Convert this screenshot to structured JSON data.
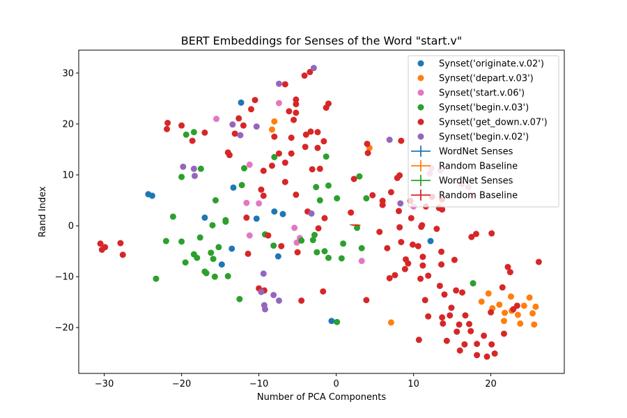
{
  "chart_data": {
    "type": "scatter",
    "title": "BERT Embeddings for Senses of the Word \"start.v\"",
    "xlabel": "Number of PCA Components",
    "ylabel": "Rand Index",
    "xlim": [
      -33.3,
      29.5
    ],
    "ylim": [
      -29.0,
      34.5
    ],
    "xticks": [
      -30,
      -20,
      -10,
      0,
      10,
      20
    ],
    "yticks": [
      -20,
      -10,
      0,
      10,
      20,
      30
    ],
    "grid": false,
    "legend_position": "top-right",
    "series": [
      {
        "name": "Synset('originate.v.02')",
        "kind": "scatter",
        "color": "#1f77b4",
        "points": [
          [
            -12.3,
            24.2
          ],
          [
            -24.3,
            6.2
          ],
          [
            -23.8,
            5.9
          ],
          [
            -17.0,
            1.6
          ],
          [
            -13.3,
            7.5
          ],
          [
            -10.3,
            1.4
          ],
          [
            -13.5,
            -4.5
          ],
          [
            -14.8,
            -7.6
          ],
          [
            -8.0,
            2.8
          ],
          [
            -6.9,
            2.3
          ],
          [
            -7.5,
            -6.0
          ],
          [
            -0.6,
            -18.7
          ],
          [
            12.2,
            -3.0
          ]
        ]
      },
      {
        "name": "Synset('depart.v.03')",
        "kind": "scatter",
        "color": "#ff7f0e",
        "points": [
          [
            -8.3,
            18.9
          ],
          [
            -8.0,
            20.5
          ],
          [
            4.3,
            15.3
          ],
          [
            7.1,
            -19.0
          ],
          [
            18.8,
            -14.9
          ],
          [
            19.7,
            -13.3
          ],
          [
            20.2,
            -16.2
          ],
          [
            21.1,
            -15.5
          ],
          [
            21.7,
            -18.7
          ],
          [
            21.8,
            -17.1
          ],
          [
            22.6,
            -13.9
          ],
          [
            22.7,
            -16.7
          ],
          [
            23.5,
            -17.5
          ],
          [
            23.8,
            -19.2
          ],
          [
            24.3,
            -15.7
          ],
          [
            25.0,
            -14.1
          ],
          [
            25.4,
            -17.2
          ],
          [
            25.6,
            -19.4
          ],
          [
            25.8,
            -15.9
          ]
        ]
      },
      {
        "name": "Synset('start.v.06')",
        "kind": "scatter",
        "color": "#e377c2",
        "points": [
          [
            -15.5,
            21.0
          ],
          [
            -11.2,
            12.0
          ],
          [
            -11.6,
            4.5
          ],
          [
            -10.0,
            4.4
          ],
          [
            -11.2,
            -1.9
          ],
          [
            -7.4,
            24.1
          ],
          [
            -5.4,
            -0.4
          ],
          [
            -5.1,
            -3.3
          ],
          [
            -4.7,
            -2.4
          ],
          [
            3.3,
            -6.9
          ],
          [
            10.0,
            3.8
          ],
          [
            12.1,
            10.3
          ],
          [
            12.3,
            11.3
          ],
          [
            13.5,
            10.9
          ],
          [
            16.2,
            8.2
          ],
          [
            17.1,
            7.6
          ],
          [
            17.6,
            6.0
          ]
        ]
      },
      {
        "name": "Synset('begin.v.03')",
        "kind": "scatter",
        "color": "#2ca02c",
        "points": [
          [
            -19.4,
            17.9
          ],
          [
            -18.4,
            18.4
          ],
          [
            -20.0,
            9.6
          ],
          [
            -17.5,
            11.2
          ],
          [
            -21.1,
            1.8
          ],
          [
            -22.0,
            -3.0
          ],
          [
            -20.0,
            -3.1
          ],
          [
            -19.5,
            -7.2
          ],
          [
            -18.4,
            -5.6
          ],
          [
            -18.0,
            -6.3
          ],
          [
            -17.6,
            -2.3
          ],
          [
            -16.8,
            -9.3
          ],
          [
            -17.0,
            -9.0
          ],
          [
            -16.2,
            -5.3
          ],
          [
            -15.9,
            -6.5
          ],
          [
            -16.0,
            0.1
          ],
          [
            -15.6,
            5.0
          ],
          [
            -15.2,
            -4.2
          ],
          [
            -14.3,
            0.8
          ],
          [
            -14.3,
            1.1
          ],
          [
            -14.0,
            -9.9
          ],
          [
            -12.5,
            -14.4
          ],
          [
            -11.9,
            11.3
          ],
          [
            -12.2,
            8.0
          ],
          [
            -9.2,
            -1.7
          ],
          [
            -8.1,
            -3.9
          ],
          [
            -8.0,
            13.5
          ],
          [
            -4.5,
            -2.9
          ],
          [
            -3.0,
            -2.8
          ],
          [
            -2.6,
            7.6
          ],
          [
            -2.5,
            -5.2
          ],
          [
            -2.8,
            -1.8
          ],
          [
            -2.1,
            5.0
          ],
          [
            -1.5,
            -5.0
          ],
          [
            -1.3,
            13.6
          ],
          [
            -1.0,
            7.9
          ],
          [
            0.1,
            5.4
          ],
          [
            2.7,
            -0.4
          ],
          [
            3.0,
            9.7
          ],
          [
            3.3,
            -4.4
          ],
          [
            3.9,
            5.4
          ],
          [
            0.9,
            -3.5
          ],
          [
            -1.0,
            -6.3
          ],
          [
            0.7,
            -6.4
          ],
          [
            0.1,
            -18.9
          ],
          [
            17.7,
            -11.3
          ],
          [
            -15.7,
            -10.0
          ],
          [
            -23.3,
            -10.4
          ]
        ]
      },
      {
        "name": "Synset('get_down.v.07')",
        "kind": "scatter",
        "color": "#d62728",
        "points": [
          [
            -30.5,
            -3.5
          ],
          [
            -30.3,
            -4.7
          ],
          [
            -29.9,
            -4.2
          ],
          [
            -27.9,
            -3.4
          ],
          [
            -27.6,
            -5.7
          ],
          [
            -21.8,
            20.2
          ],
          [
            -21.9,
            19.0
          ],
          [
            -20.0,
            19.7
          ],
          [
            -18.6,
            16.7
          ],
          [
            -17.0,
            18.3
          ],
          [
            -14.0,
            14.4
          ],
          [
            -13.8,
            13.9
          ],
          [
            -13.1,
            18.1
          ],
          [
            -12.6,
            21.1
          ],
          [
            -12.0,
            19.7
          ],
          [
            -11.6,
            1.6
          ],
          [
            -11.4,
            -5.5
          ],
          [
            -11.0,
            22.9
          ],
          [
            -10.5,
            24.7
          ],
          [
            -9.7,
            7.1
          ],
          [
            -9.4,
            10.8
          ],
          [
            -9.4,
            5.9
          ],
          [
            -8.8,
            -1.9
          ],
          [
            -8.3,
            11.8
          ],
          [
            -8.0,
            17.5
          ],
          [
            -7.4,
            14.2
          ],
          [
            -7.1,
            -4.0
          ],
          [
            -6.6,
            27.8
          ],
          [
            -6.6,
            8.6
          ],
          [
            -6.6,
            12.4
          ],
          [
            -6.1,
            22.5
          ],
          [
            -5.8,
            14.2
          ],
          [
            -5.8,
            17.3
          ],
          [
            -5.2,
            22.2
          ],
          [
            -5.5,
            20.8
          ],
          [
            -5.2,
            23.9
          ],
          [
            -5.2,
            24.8
          ],
          [
            -5.2,
            6.1
          ],
          [
            -5.0,
            -5.2
          ],
          [
            -4.5,
            -14.7
          ],
          [
            -4.1,
            29.5
          ],
          [
            -3.4,
            30.2
          ],
          [
            -3.9,
            17.9
          ],
          [
            -4.0,
            15.5
          ],
          [
            -3.7,
            2.8
          ],
          [
            -3.3,
            18.5
          ],
          [
            -3.1,
            11.1
          ],
          [
            -2.4,
            18.4
          ],
          [
            -2.4,
            15.3
          ],
          [
            -2.1,
            11.2
          ],
          [
            -1.6,
            16.6
          ],
          [
            -1.3,
            23.2
          ],
          [
            -1.0,
            24.0
          ],
          [
            -1.5,
            1.5
          ],
          [
            1.9,
            2.6
          ],
          [
            2.3,
            9.2
          ],
          [
            4.0,
            16.1
          ],
          [
            4.1,
            14.3
          ],
          [
            3.9,
            -14.6
          ],
          [
            4.7,
            6.0
          ],
          [
            5.6,
            -1.2
          ],
          [
            6.0,
            4.9
          ],
          [
            6.0,
            4.1
          ],
          [
            6.6,
            -4.4
          ],
          [
            6.9,
            -10.3
          ],
          [
            7.6,
            -9.7
          ],
          [
            7.1,
            6.6
          ],
          [
            7.9,
            9.4
          ],
          [
            8.1,
            2.9
          ],
          [
            8.4,
            16.7
          ],
          [
            8.2,
            -0.3
          ],
          [
            8.4,
            -3.2
          ],
          [
            8.2,
            9.9
          ],
          [
            9.0,
            -6.6
          ],
          [
            9.3,
            -7.4
          ],
          [
            8.9,
            -8.5
          ],
          [
            9.6,
            4.9
          ],
          [
            9.7,
            1.5
          ],
          [
            9.9,
            -3.7
          ],
          [
            10.6,
            -4.0
          ],
          [
            10.7,
            -22.4
          ],
          [
            10.9,
            -10.4
          ],
          [
            11.0,
            -0.2
          ],
          [
            11.2,
            -6.1
          ],
          [
            11.2,
            -7.8
          ],
          [
            11.5,
            -14.6
          ],
          [
            11.9,
            -17.8
          ],
          [
            11.9,
            -9.8
          ],
          [
            11.6,
            3.8
          ],
          [
            12.4,
            5.7
          ],
          [
            13.0,
            -0.6
          ],
          [
            13.3,
            3.5
          ],
          [
            13.4,
            -11.8
          ],
          [
            13.7,
            -18.0
          ],
          [
            13.6,
            -5.1
          ],
          [
            13.6,
            -7.6
          ],
          [
            13.7,
            5.2
          ],
          [
            13.7,
            3.2
          ],
          [
            13.8,
            -19.2
          ],
          [
            14.0,
            -13.5
          ],
          [
            14.3,
            -22.6
          ],
          [
            14.7,
            -17.6
          ],
          [
            14.9,
            -16.1
          ],
          [
            15.3,
            -6.7
          ],
          [
            15.5,
            -12.7
          ],
          [
            15.6,
            -20.8
          ],
          [
            15.9,
            -19.4
          ],
          [
            16.0,
            -24.5
          ],
          [
            16.3,
            -13.1
          ],
          [
            16.6,
            -23.3
          ],
          [
            16.7,
            -17.6
          ],
          [
            17.2,
            -19.3
          ],
          [
            17.4,
            -20.7
          ],
          [
            17.5,
            -2.2
          ],
          [
            18.1,
            -1.6
          ],
          [
            18.2,
            -23.2
          ],
          [
            18.2,
            -25.4
          ],
          [
            19.1,
            -21.6
          ],
          [
            19.5,
            -25.7
          ],
          [
            20.1,
            -23.3
          ],
          [
            20.1,
            -1.5
          ],
          [
            20.0,
            -17.0
          ],
          [
            20.5,
            -25.1
          ],
          [
            21.5,
            -12.1
          ],
          [
            21.7,
            -21.2
          ],
          [
            22.2,
            -8.1
          ],
          [
            22.5,
            -9.1
          ],
          [
            22.9,
            -16.4
          ],
          [
            23.4,
            -15.7
          ],
          [
            26.2,
            -7.1
          ],
          [
            -9.3,
            -12.7
          ],
          [
            -10.0,
            -12.3
          ],
          [
            11.1,
            0.1
          ],
          [
            -1.7,
            -12.9
          ],
          [
            -2.3,
            -0.5
          ]
        ]
      },
      {
        "name": "Synset('begin.v.02')",
        "kind": "scatter",
        "color": "#9467bd",
        "points": [
          [
            -19.8,
            11.6
          ],
          [
            -18.4,
            11.2
          ],
          [
            -18.3,
            9.8
          ],
          [
            -13.4,
            19.9
          ],
          [
            -12.4,
            17.8
          ],
          [
            -10.3,
            19.5
          ],
          [
            -7.4,
            27.9
          ],
          [
            -2.9,
            31.0
          ],
          [
            -9.4,
            -9.4
          ],
          [
            -9.7,
            -13.0
          ],
          [
            -9.3,
            -15.6
          ],
          [
            -9.2,
            -16.4
          ],
          [
            -8.1,
            -13.6
          ],
          [
            -7.4,
            -14.7
          ],
          [
            -3.2,
            2.4
          ],
          [
            6.9,
            16.9
          ],
          [
            8.3,
            4.4
          ]
        ]
      },
      {
        "name": "WordNet Senses",
        "kind": "errorbar",
        "color": "#1f77b4",
        "points": [
          [
            2.3,
            0.2
          ]
        ]
      },
      {
        "name": "Random Baseline",
        "kind": "errorbar",
        "color": "#ff7f0e",
        "points": [
          [
            2.4,
            0.2
          ]
        ]
      },
      {
        "name": "WordNet Senses",
        "kind": "errorbar",
        "color": "#2ca02c",
        "points": [
          [
            2.5,
            0.1
          ]
        ]
      },
      {
        "name": "Random Baseline",
        "kind": "errorbar",
        "color": "#d62728",
        "points": [
          [
            2.6,
            0.1
          ]
        ]
      }
    ]
  }
}
